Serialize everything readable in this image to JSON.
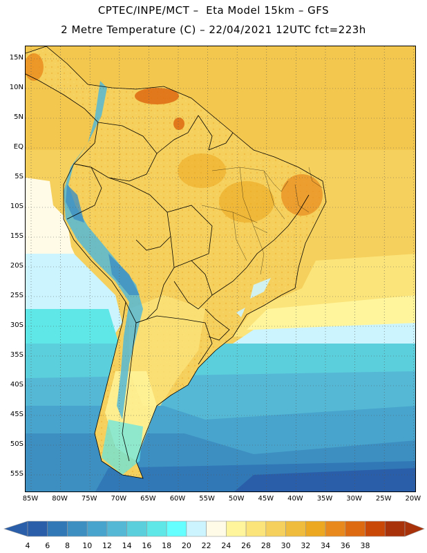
{
  "header": {
    "title_line1": "CPTEC/INPE/MCT –  Eta Model 15km – GFS",
    "title_line2": "2 Metre Temperature (C) – 22/04/2021 12UTC fct=223h"
  },
  "map": {
    "region": "South America",
    "lat_labels": [
      "15N",
      "10N",
      "5N",
      "EQ",
      "5S",
      "10S",
      "15S",
      "20S",
      "25S",
      "30S",
      "35S",
      "40S",
      "45S",
      "50S",
      "55S"
    ],
    "lon_labels": [
      "85W",
      "80W",
      "75W",
      "70W",
      "65W",
      "60W",
      "55W",
      "50W",
      "45W",
      "40W",
      "35W",
      "30W",
      "25W",
      "20W"
    ]
  },
  "colorbar": {
    "labels": [
      "4",
      "6",
      "8",
      "10",
      "12",
      "14",
      "16",
      "18",
      "20",
      "22",
      "24",
      "26",
      "28",
      "30",
      "32",
      "34",
      "36",
      "38"
    ],
    "colors": [
      "#2a5ea8",
      "#3178b6",
      "#3d8fc2",
      "#48a4cc",
      "#55b9d6",
      "#5ccfdc",
      "#5fe6e6",
      "#66ffff",
      "#ccf4ff",
      "#fffbe6",
      "#fff59c",
      "#fbe47a",
      "#f6d05c",
      "#f0bc3e",
      "#eca820",
      "#e8891d",
      "#dd6a10",
      "#c94808",
      "#a8320a"
    ],
    "under_color": "#2a5ea8",
    "over_color": "#a8320a"
  }
}
